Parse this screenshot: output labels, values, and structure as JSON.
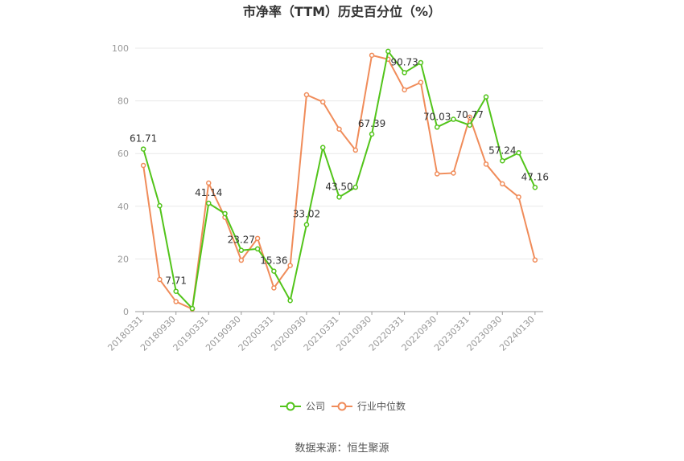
{
  "chart_data": {
    "type": "line",
    "title": "市净率（TTM）历史百分位（%）",
    "xlabel": "",
    "ylabel": "",
    "ylim": [
      0,
      100
    ],
    "yticks": [
      0,
      20,
      40,
      60,
      80,
      100
    ],
    "x": [
      "20180331",
      "20180630",
      "20180930",
      "20181231",
      "20190331",
      "20190630",
      "20190930",
      "20191231",
      "20200331",
      "20200630",
      "20200930",
      "20201231",
      "20210331",
      "20210630",
      "20210930",
      "20211231",
      "20220331",
      "20220630",
      "20220930",
      "20221231",
      "20230331",
      "20230630",
      "20230930",
      "20231231",
      "20240130"
    ],
    "xtick_labels": [
      "20180331",
      "20180930",
      "20190331",
      "20190930",
      "20200331",
      "20200930",
      "20210331",
      "20210930",
      "20220331",
      "20220930",
      "20230331",
      "20230930",
      "20240130"
    ],
    "grid": true,
    "legend_position": "bottom",
    "series": [
      {
        "name": "公司",
        "color": "#52c41a",
        "values": [
          61.71,
          40.2,
          7.71,
          1.2,
          41.14,
          37.2,
          23.27,
          23.8,
          15.36,
          4.2,
          33.02,
          62.3,
          43.5,
          47.2,
          67.39,
          98.8,
          90.73,
          94.5,
          70.03,
          73.0,
          70.77,
          81.5,
          57.24,
          60.3,
          47.16
        ],
        "labels": [
          "61.71",
          "",
          "7.71",
          "",
          "41.14",
          "",
          "23.27",
          "",
          "15.36",
          "",
          "33.02",
          "",
          "43.50",
          "",
          "67.39",
          "",
          "90.73",
          "",
          "70.03",
          "",
          "70.77",
          "",
          "57.24",
          "",
          "47.16"
        ]
      },
      {
        "name": "行业中位数",
        "color": "#f08c5a",
        "values": [
          55.5,
          12.2,
          3.8,
          1.0,
          48.8,
          35.8,
          19.5,
          27.8,
          9.0,
          17.5,
          82.3,
          79.6,
          69.3,
          61.3,
          97.3,
          95.8,
          84.2,
          87.0,
          52.3,
          52.6,
          73.8,
          56.0,
          48.5,
          43.5,
          19.6
        ]
      }
    ]
  },
  "source": "数据来源：恒生聚源"
}
